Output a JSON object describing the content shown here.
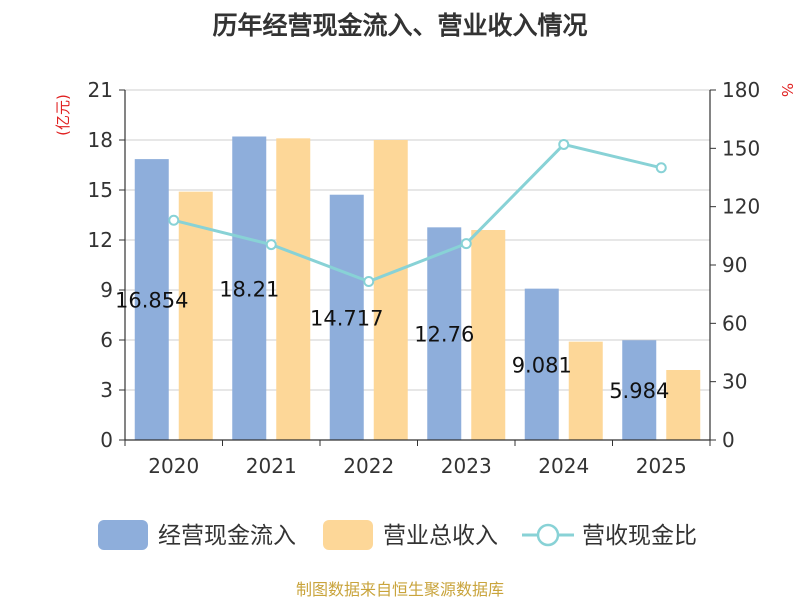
{
  "chart_data": {
    "type": "bar",
    "title": "历年经营现金流入、营业收入情况",
    "categories": [
      "2020",
      "2021",
      "2022",
      "2023",
      "2024",
      "2025"
    ],
    "series": [
      {
        "name": "经营现金流入",
        "kind": "bar",
        "axis": "left",
        "color": "#8eaedb",
        "values": [
          16.854,
          18.21,
          14.717,
          12.76,
          9.081,
          5.984
        ],
        "labels": [
          "16.854",
          "18.21",
          "14.717",
          "12.76",
          "9.081",
          "5.984"
        ]
      },
      {
        "name": "营业总收入",
        "kind": "bar",
        "axis": "left",
        "color": "#fdd798",
        "values": [
          14.9,
          18.1,
          18.0,
          12.6,
          5.9,
          4.2
        ]
      },
      {
        "name": "营收现金比",
        "kind": "line",
        "axis": "right",
        "color": "#88d2d6",
        "values": [
          113,
          100.5,
          81.5,
          101,
          152,
          140
        ]
      }
    ],
    "y_left": {
      "unit": "(亿元)",
      "min": 0,
      "max": 21,
      "ticks": [
        "0",
        "3",
        "6",
        "9",
        "12",
        "15",
        "18",
        "21"
      ]
    },
    "y_right": {
      "unit": "%",
      "min": 0,
      "max": 180,
      "ticks": [
        "0",
        "30",
        "60",
        "90",
        "120",
        "150",
        "180"
      ]
    },
    "grid": true,
    "legend_position": "bottom"
  },
  "source": "制图数据来自恒生聚源数据库"
}
